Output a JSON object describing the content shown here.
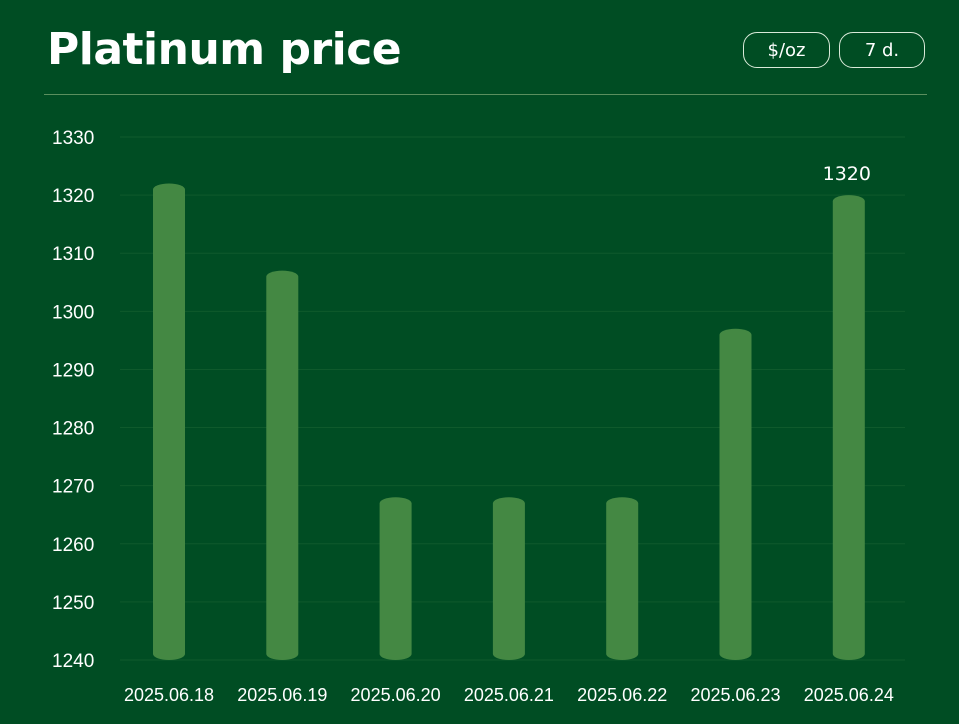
{
  "header": {
    "title": "Platinum price",
    "unit_button": "$/oz",
    "range_button": "7 d."
  },
  "colors": {
    "background": "#004d23",
    "bar": "#448843",
    "grid": "#0f5a2c",
    "divider": "#5b8f5e"
  },
  "chart_data": {
    "type": "bar",
    "categories": [
      "2025.06.18",
      "2025.06.19",
      "2025.06.20",
      "2025.06.21",
      "2025.06.22",
      "2025.06.23",
      "2025.06.24"
    ],
    "values": [
      1322,
      1307,
      1268,
      1268,
      1268,
      1297,
      1320
    ],
    "ylim": [
      1240,
      1330
    ],
    "yticks": [
      1240,
      1250,
      1260,
      1270,
      1280,
      1290,
      1300,
      1310,
      1320,
      1330
    ],
    "grid": true,
    "data_labels": [
      {
        "category": "2025.06.24",
        "text": "1320"
      }
    ]
  }
}
